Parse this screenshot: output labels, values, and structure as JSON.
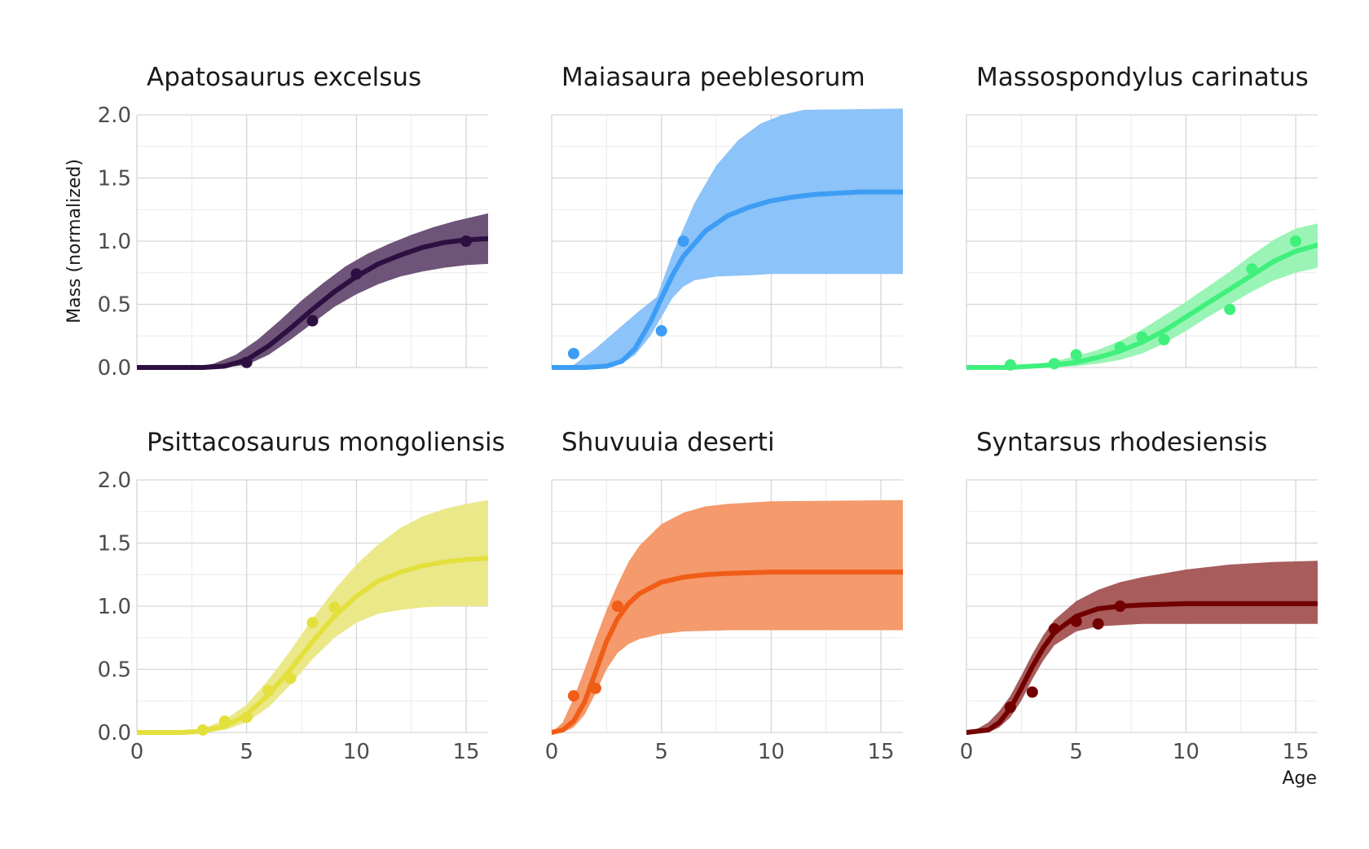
{
  "chart_data": {
    "type": "line",
    "xlabel": "Age",
    "ylabel": "Mass (normalized)",
    "xlim": [
      0,
      16
    ],
    "ylim": [
      0,
      2
    ],
    "x_ticks": [
      "0",
      "5",
      "10",
      "15"
    ],
    "y_ticks": [
      "0.0",
      "0.5",
      "1.0",
      "1.5",
      "2.0"
    ],
    "grid": true,
    "legend": "none",
    "panels": [
      {
        "title": "Apatosaurus excelsus",
        "color": "#2d0f41",
        "band_color": "#6e5479",
        "points": [
          [
            5,
            0.04
          ],
          [
            8,
            0.37
          ],
          [
            10,
            0.74
          ],
          [
            15,
            1.0
          ]
        ],
        "fit": [
          [
            0,
            0.0
          ],
          [
            3,
            0.0
          ],
          [
            4,
            0.01
          ],
          [
            5,
            0.06
          ],
          [
            6,
            0.17
          ],
          [
            7,
            0.31
          ],
          [
            8,
            0.46
          ],
          [
            9,
            0.6
          ],
          [
            10,
            0.72
          ],
          [
            11,
            0.82
          ],
          [
            12,
            0.89
          ],
          [
            13,
            0.95
          ],
          [
            14,
            0.99
          ],
          [
            15,
            1.01
          ],
          [
            16,
            1.02
          ]
        ],
        "band_low": [
          [
            0,
            0.0
          ],
          [
            3,
            0.0
          ],
          [
            4,
            0.0
          ],
          [
            5,
            0.02
          ],
          [
            6,
            0.1
          ],
          [
            7,
            0.22
          ],
          [
            8,
            0.35
          ],
          [
            9,
            0.48
          ],
          [
            10,
            0.58
          ],
          [
            11,
            0.66
          ],
          [
            12,
            0.72
          ],
          [
            13,
            0.76
          ],
          [
            14,
            0.79
          ],
          [
            15,
            0.81
          ],
          [
            16,
            0.82
          ]
        ],
        "band_high": [
          [
            0,
            0.0
          ],
          [
            2.5,
            0.0
          ],
          [
            3.5,
            0.03
          ],
          [
            4.5,
            0.1
          ],
          [
            5.5,
            0.22
          ],
          [
            6.5,
            0.37
          ],
          [
            7.5,
            0.53
          ],
          [
            8.5,
            0.67
          ],
          [
            9.5,
            0.8
          ],
          [
            10.5,
            0.9
          ],
          [
            11.5,
            0.98
          ],
          [
            12.5,
            1.05
          ],
          [
            13.5,
            1.11
          ],
          [
            14.5,
            1.16
          ],
          [
            16,
            1.22
          ]
        ]
      },
      {
        "title": "Maiasaura peeblesorum",
        "color": "#3d9df5",
        "band_color": "#8cc3f8",
        "points": [
          [
            1,
            0.11
          ],
          [
            5,
            0.29
          ],
          [
            6,
            1.0
          ]
        ],
        "fit": [
          [
            0,
            0.0
          ],
          [
            1.5,
            0.0
          ],
          [
            2.5,
            0.01
          ],
          [
            3.2,
            0.05
          ],
          [
            3.8,
            0.15
          ],
          [
            4.5,
            0.36
          ],
          [
            5,
            0.55
          ],
          [
            5.5,
            0.73
          ],
          [
            6,
            0.88
          ],
          [
            7,
            1.08
          ],
          [
            8,
            1.2
          ],
          [
            9,
            1.27
          ],
          [
            10,
            1.32
          ],
          [
            11,
            1.35
          ],
          [
            12,
            1.37
          ],
          [
            13,
            1.38
          ],
          [
            14,
            1.39
          ],
          [
            16,
            1.39
          ]
        ],
        "band_low": [
          [
            0,
            0.0
          ],
          [
            2.5,
            0.0
          ],
          [
            3.2,
            0.03
          ],
          [
            3.8,
            0.1
          ],
          [
            4.5,
            0.25
          ],
          [
            5,
            0.4
          ],
          [
            5.5,
            0.55
          ],
          [
            6,
            0.64
          ],
          [
            6.5,
            0.69
          ],
          [
            7.5,
            0.72
          ],
          [
            9,
            0.73
          ],
          [
            10,
            0.74
          ],
          [
            12,
            0.74
          ],
          [
            16,
            0.74
          ]
        ],
        "band_high": [
          [
            0,
            0.0
          ],
          [
            1,
            0.02
          ],
          [
            2,
            0.15
          ],
          [
            3,
            0.3
          ],
          [
            4,
            0.45
          ],
          [
            4.8,
            0.56
          ],
          [
            5.5,
            0.9
          ],
          [
            6.5,
            1.3
          ],
          [
            7.5,
            1.6
          ],
          [
            8.5,
            1.8
          ],
          [
            9.5,
            1.93
          ],
          [
            10.5,
            2.0
          ],
          [
            11.5,
            2.04
          ],
          [
            16,
            2.05
          ]
        ]
      },
      {
        "title": "Massospondylus carinatus",
        "color": "#3ff07c",
        "band_color": "#9af4b5",
        "points": [
          [
            2,
            0.02
          ],
          [
            4,
            0.03
          ],
          [
            5,
            0.1
          ],
          [
            7,
            0.16
          ],
          [
            8,
            0.24
          ],
          [
            9,
            0.22
          ],
          [
            12,
            0.46
          ],
          [
            13,
            0.78
          ],
          [
            15,
            1.0
          ]
        ],
        "fit": [
          [
            0,
            0.0
          ],
          [
            2,
            0.0
          ],
          [
            3,
            0.01
          ],
          [
            4,
            0.02
          ],
          [
            5,
            0.04
          ],
          [
            6,
            0.08
          ],
          [
            7,
            0.13
          ],
          [
            8,
            0.2
          ],
          [
            9,
            0.29
          ],
          [
            10,
            0.4
          ],
          [
            11,
            0.51
          ],
          [
            12,
            0.62
          ],
          [
            13,
            0.73
          ],
          [
            14,
            0.84
          ],
          [
            15,
            0.92
          ],
          [
            16,
            0.97
          ]
        ],
        "band_low": [
          [
            0,
            0.0
          ],
          [
            3,
            0.0
          ],
          [
            4,
            0.0
          ],
          [
            5,
            0.01
          ],
          [
            6,
            0.03
          ],
          [
            7,
            0.06
          ],
          [
            8,
            0.11
          ],
          [
            9,
            0.19
          ],
          [
            10,
            0.29
          ],
          [
            11,
            0.4
          ],
          [
            12,
            0.5
          ],
          [
            13,
            0.6
          ],
          [
            14,
            0.69
          ],
          [
            15,
            0.75
          ],
          [
            16,
            0.79
          ]
        ],
        "band_high": [
          [
            0,
            0.0
          ],
          [
            2,
            0.0
          ],
          [
            3,
            0.02
          ],
          [
            4,
            0.05
          ],
          [
            5,
            0.09
          ],
          [
            6,
            0.14
          ],
          [
            7,
            0.21
          ],
          [
            8,
            0.3
          ],
          [
            9,
            0.41
          ],
          [
            10,
            0.52
          ],
          [
            11,
            0.64
          ],
          [
            12,
            0.76
          ],
          [
            13,
            0.89
          ],
          [
            14,
            1.01
          ],
          [
            15,
            1.1
          ],
          [
            16,
            1.14
          ]
        ]
      },
      {
        "title": "Psittacosaurus mongoliensis",
        "color": "#e3e03e",
        "band_color": "#ebe88a",
        "points": [
          [
            3,
            0.02
          ],
          [
            4,
            0.09
          ],
          [
            5,
            0.12
          ],
          [
            6,
            0.33
          ],
          [
            7,
            0.43
          ],
          [
            8,
            0.87
          ],
          [
            9,
            0.99
          ]
        ],
        "fit": [
          [
            0,
            0.0
          ],
          [
            2,
            0.0
          ],
          [
            3,
            0.01
          ],
          [
            4,
            0.05
          ],
          [
            5,
            0.14
          ],
          [
            6,
            0.3
          ],
          [
            7,
            0.5
          ],
          [
            8,
            0.72
          ],
          [
            9,
            0.92
          ],
          [
            10,
            1.08
          ],
          [
            11,
            1.2
          ],
          [
            12,
            1.27
          ],
          [
            13,
            1.32
          ],
          [
            14,
            1.35
          ],
          [
            15,
            1.37
          ],
          [
            16,
            1.38
          ]
        ],
        "band_low": [
          [
            0,
            0.0
          ],
          [
            3,
            0.0
          ],
          [
            4,
            0.02
          ],
          [
            5,
            0.08
          ],
          [
            6,
            0.2
          ],
          [
            7,
            0.38
          ],
          [
            8,
            0.58
          ],
          [
            9,
            0.75
          ],
          [
            10,
            0.87
          ],
          [
            11,
            0.94
          ],
          [
            12,
            0.97
          ],
          [
            13,
            0.99
          ],
          [
            14,
            1.0
          ],
          [
            16,
            1.0
          ]
        ],
        "band_high": [
          [
            0,
            0.0
          ],
          [
            2,
            0.0
          ],
          [
            3,
            0.03
          ],
          [
            4,
            0.1
          ],
          [
            5,
            0.22
          ],
          [
            6,
            0.42
          ],
          [
            7,
            0.65
          ],
          [
            8,
            0.9
          ],
          [
            9,
            1.13
          ],
          [
            10,
            1.33
          ],
          [
            11,
            1.49
          ],
          [
            12,
            1.62
          ],
          [
            13,
            1.71
          ],
          [
            14,
            1.77
          ],
          [
            15,
            1.81
          ],
          [
            16,
            1.84
          ]
        ]
      },
      {
        "title": "Shuvuuia deserti",
        "color": "#f05d17",
        "band_color": "#f49a6c",
        "points": [
          [
            1,
            0.29
          ],
          [
            2,
            0.35
          ],
          [
            3,
            1.0
          ]
        ],
        "fit": [
          [
            0,
            0.0
          ],
          [
            0.5,
            0.02
          ],
          [
            1,
            0.09
          ],
          [
            1.5,
            0.24
          ],
          [
            2,
            0.48
          ],
          [
            2.5,
            0.72
          ],
          [
            3,
            0.9
          ],
          [
            3.5,
            1.02
          ],
          [
            4,
            1.1
          ],
          [
            5,
            1.19
          ],
          [
            6,
            1.23
          ],
          [
            7,
            1.25
          ],
          [
            8,
            1.26
          ],
          [
            10,
            1.27
          ],
          [
            16,
            1.27
          ]
        ],
        "band_low": [
          [
            0,
            0.0
          ],
          [
            0.5,
            0.0
          ],
          [
            1,
            0.04
          ],
          [
            1.5,
            0.14
          ],
          [
            2,
            0.31
          ],
          [
            2.5,
            0.5
          ],
          [
            3,
            0.63
          ],
          [
            3.5,
            0.7
          ],
          [
            4,
            0.74
          ],
          [
            5,
            0.78
          ],
          [
            6,
            0.8
          ],
          [
            8,
            0.81
          ],
          [
            16,
            0.81
          ]
        ],
        "band_high": [
          [
            0,
            0.0
          ],
          [
            0.5,
            0.08
          ],
          [
            1,
            0.27
          ],
          [
            1.5,
            0.5
          ],
          [
            2,
            0.74
          ],
          [
            2.5,
            0.97
          ],
          [
            3,
            1.17
          ],
          [
            3.5,
            1.35
          ],
          [
            4,
            1.48
          ],
          [
            5,
            1.65
          ],
          [
            6,
            1.74
          ],
          [
            7,
            1.79
          ],
          [
            8,
            1.81
          ],
          [
            10,
            1.83
          ],
          [
            16,
            1.84
          ]
        ]
      },
      {
        "title": "Syntarsus rhodesiensis",
        "color": "#720000",
        "band_color": "#a85c5c",
        "points": [
          [
            2,
            0.2
          ],
          [
            3,
            0.32
          ],
          [
            4,
            0.82
          ],
          [
            5,
            0.88
          ],
          [
            6,
            0.86
          ],
          [
            7,
            1.0
          ]
        ],
        "fit": [
          [
            0,
            0.0
          ],
          [
            1,
            0.02
          ],
          [
            1.5,
            0.08
          ],
          [
            2,
            0.19
          ],
          [
            2.5,
            0.35
          ],
          [
            3,
            0.52
          ],
          [
            3.5,
            0.67
          ],
          [
            4,
            0.79
          ],
          [
            5,
            0.92
          ],
          [
            6,
            0.98
          ],
          [
            7,
            1.0
          ],
          [
            8,
            1.01
          ],
          [
            10,
            1.02
          ],
          [
            16,
            1.02
          ]
        ],
        "band_low": [
          [
            0,
            0.0
          ],
          [
            1,
            0.0
          ],
          [
            1.5,
            0.04
          ],
          [
            2,
            0.12
          ],
          [
            2.5,
            0.25
          ],
          [
            3,
            0.42
          ],
          [
            3.5,
            0.57
          ],
          [
            4,
            0.69
          ],
          [
            5,
            0.8
          ],
          [
            6,
            0.84
          ],
          [
            7,
            0.85
          ],
          [
            8,
            0.86
          ],
          [
            16,
            0.86
          ]
        ],
        "band_high": [
          [
            0,
            0.0
          ],
          [
            0.5,
            0.03
          ],
          [
            1,
            0.08
          ],
          [
            1.5,
            0.17
          ],
          [
            2,
            0.29
          ],
          [
            2.5,
            0.45
          ],
          [
            3,
            0.62
          ],
          [
            3.5,
            0.77
          ],
          [
            4,
            0.89
          ],
          [
            5,
            1.04
          ],
          [
            6,
            1.13
          ],
          [
            7,
            1.19
          ],
          [
            8,
            1.23
          ],
          [
            10,
            1.29
          ],
          [
            12,
            1.33
          ],
          [
            14,
            1.35
          ],
          [
            16,
            1.36
          ]
        ]
      }
    ]
  }
}
